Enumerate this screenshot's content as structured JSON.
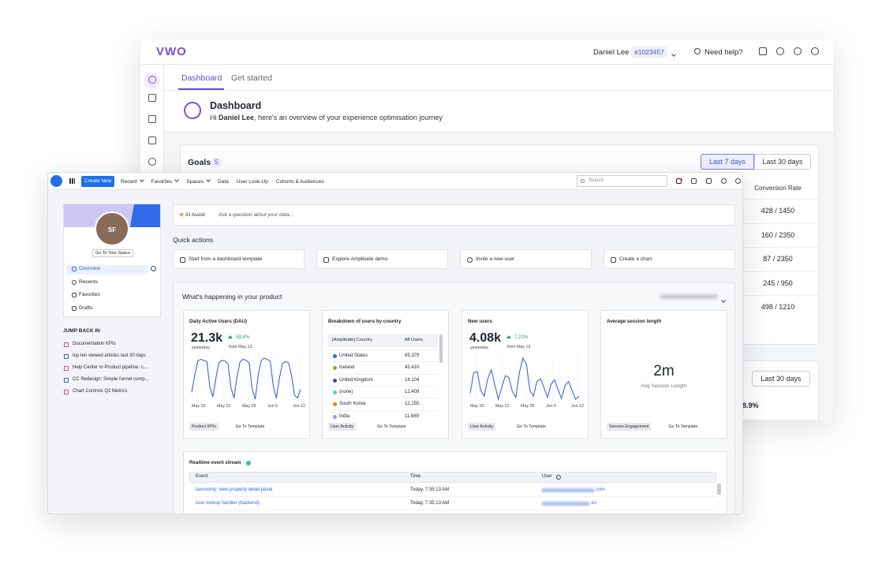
{
  "vwo": {
    "logo": "VWO",
    "user": "Daniel Lee",
    "account_id": "#1023457",
    "help": "Need help?",
    "tabs": [
      "Dashboard",
      "Get started"
    ],
    "title": "Dashboard",
    "greeting_prefix": "Hi ",
    "greeting_name": "Daniel Lee",
    "greeting_rest": ", here's an overview of your experience optimisation journey",
    "goals": {
      "title": "Goals",
      "count": 5,
      "ranges": [
        "Last 7 days",
        "Last 30 days"
      ],
      "column": "Conversion Rate",
      "values": [
        "428 / 1450",
        "160 / 2350",
        "87 / 2350",
        "245 / 950",
        "498 / 1210"
      ]
    },
    "second_card": {
      "range": "Last 30 days",
      "value": "8.9%"
    }
  },
  "amplitude": {
    "nav": {
      "create": "Create New",
      "menus": [
        {
          "label": "Recent",
          "dropdown": true
        },
        {
          "label": "Favorites",
          "dropdown": true
        },
        {
          "label": "Spaces",
          "dropdown": true
        },
        {
          "label": "Data",
          "dropdown": false
        },
        {
          "label": "User Look-Up",
          "dropdown": false
        },
        {
          "label": "Cohorts & Audiences",
          "dropdown": false
        }
      ],
      "search": "Search"
    },
    "sidebar": {
      "avatar": "SF",
      "space_button": "Go To Your Space",
      "nav": [
        "Overview",
        "Recents",
        "Favorites",
        "Drafts"
      ],
      "jump_title": "JUMP BACK IN",
      "jump_items": [
        "Documentation KPIs",
        "top ten viewed articles last 30 days",
        "Help Center to Product pipeline: c...",
        "CC Redesign: Simple funnel comp...",
        "Chart Controls Q2 Metrics"
      ]
    },
    "ai": {
      "label": "AI Assist",
      "placeholder": "Ask a question about your data..."
    },
    "quick_actions": {
      "title": "Quick actions",
      "items": [
        "Start from a dashboard template",
        "Explore Amplitude demo",
        "Invite a new user",
        "Create a chart"
      ]
    },
    "panel": {
      "title": "What's happening in your product",
      "cards": [
        {
          "type": "line",
          "title": "Daily Active Users (DAU)",
          "value": "21.3k",
          "value_caption": "yesterday",
          "change": "59.4%",
          "change_caption": "from May 13",
          "x_labels": [
            "May 15",
            "May 22",
            "May 29",
            "Jun 5",
            "Jun 12"
          ],
          "color": "#3f63e0",
          "values": [
            30,
            60,
            85,
            88,
            86,
            84,
            40,
            22,
            55,
            82,
            86,
            85,
            80,
            38,
            20,
            58,
            84,
            88,
            86,
            82,
            36,
            18,
            60,
            86,
            90,
            88,
            84,
            40,
            20,
            55,
            80,
            84,
            82,
            60,
            25,
            20,
            35
          ],
          "tags": [
            "Product KPIs",
            "Go To Template"
          ]
        },
        {
          "type": "table",
          "title": "Breakdown of users by country",
          "columns": [
            "[Amplitude] Country",
            "All Users"
          ],
          "rows": [
            [
              "United States",
              "85,379"
            ],
            [
              "Iceland",
              "43,410"
            ],
            [
              "United Kingdom",
              "14,104"
            ],
            [
              "(none)",
              "12,409"
            ],
            [
              "South Korea",
              "12,155"
            ],
            [
              "India",
              "11,689"
            ]
          ],
          "colors": [
            "#3f63e0",
            "#7cb342",
            "#5e35b1",
            "#4dd0e1",
            "#f57c00",
            "#b388ff"
          ],
          "tags": [
            "User Activity",
            "Go To Template"
          ]
        },
        {
          "type": "line",
          "title": "New users",
          "value": "4.08k",
          "value_caption": "yesterday",
          "change": "7.22%",
          "change_caption": "from May 13",
          "x_labels": [
            "May 15",
            "May 22",
            "May 29",
            "Jun 5",
            "Jun 12"
          ],
          "color": "#3f63e0",
          "values": [
            35,
            70,
            72,
            40,
            30,
            60,
            75,
            50,
            25,
            45,
            65,
            62,
            38,
            28,
            70,
            95,
            85,
            40,
            30,
            55,
            60,
            45,
            28,
            50,
            58,
            42,
            26,
            48,
            55,
            40,
            25,
            30
          ],
          "tags": [
            "User Activity",
            "Go To Template"
          ]
        },
        {
          "type": "metric",
          "title": "Average session length",
          "value": "2m",
          "caption": "Avg Session Length",
          "tags": [
            "Session Engagement",
            "Go To Template"
          ]
        }
      ]
    },
    "stream": {
      "title": "Realtime event stream",
      "columns": [
        "Event",
        "Time",
        "User"
      ],
      "rows": [
        [
          "taxonomy: view property detail panel",
          "Today, 7:35:13 AM",
          ".com"
        ],
        [
          "user lookup handler (backend)",
          "Today, 7:35:13 AM",
          ".es"
        ]
      ]
    }
  }
}
